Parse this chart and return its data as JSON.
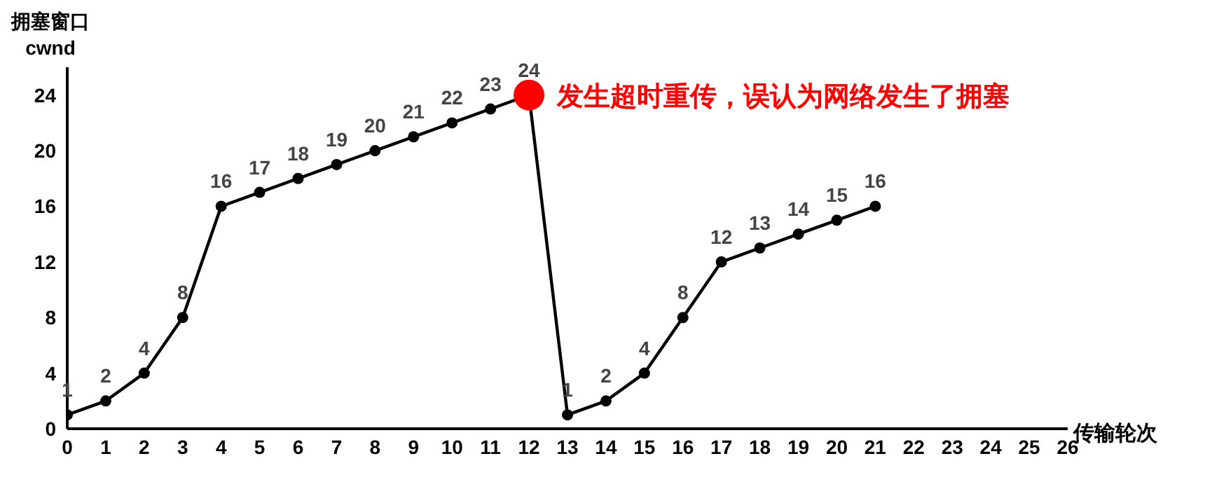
{
  "chart_data": {
    "type": "line",
    "xlabel": "传输轮次",
    "ylabel": "拥塞窗口\ncwnd",
    "xlim": [
      0,
      26
    ],
    "xticks": [
      0,
      1,
      2,
      3,
      4,
      5,
      6,
      7,
      8,
      9,
      10,
      11,
      12,
      13,
      14,
      15,
      16,
      17,
      18,
      19,
      20,
      21,
      22,
      23,
      24,
      25,
      26
    ],
    "ylim": [
      0,
      26
    ],
    "yticks": [
      0,
      4,
      8,
      12,
      16,
      20,
      24
    ],
    "marker": "circle",
    "line_style": "solid",
    "data_labels": true,
    "series": [
      {
        "type": "line",
        "color": "#000000",
        "colors": [
          "#000000",
          "#000000",
          "#000000",
          "#000000",
          "#000000",
          "#000000",
          "#000000",
          "#000000",
          "#000000",
          "#000000",
          "#000000",
          "#000000",
          "#ff0000",
          "#000000",
          "#000000",
          "#000000",
          "#000000",
          "#000000",
          "#000000",
          "#000000",
          "#000000",
          "#000000"
        ],
        "x": [
          0,
          1,
          2,
          3,
          4,
          5,
          6,
          7,
          8,
          9,
          10,
          11,
          12,
          13,
          14,
          15,
          16,
          17,
          18,
          19,
          20,
          21
        ],
        "values": [
          1,
          2,
          4,
          8,
          16,
          17,
          18,
          19,
          20,
          21,
          22,
          23,
          24,
          1,
          2,
          4,
          8,
          12,
          13,
          14,
          15,
          16
        ]
      }
    ],
    "annotations": [
      {
        "text": "发生超时重传，误认为网络发生了拥塞",
        "x": 12,
        "y": 24
      }
    ]
  }
}
